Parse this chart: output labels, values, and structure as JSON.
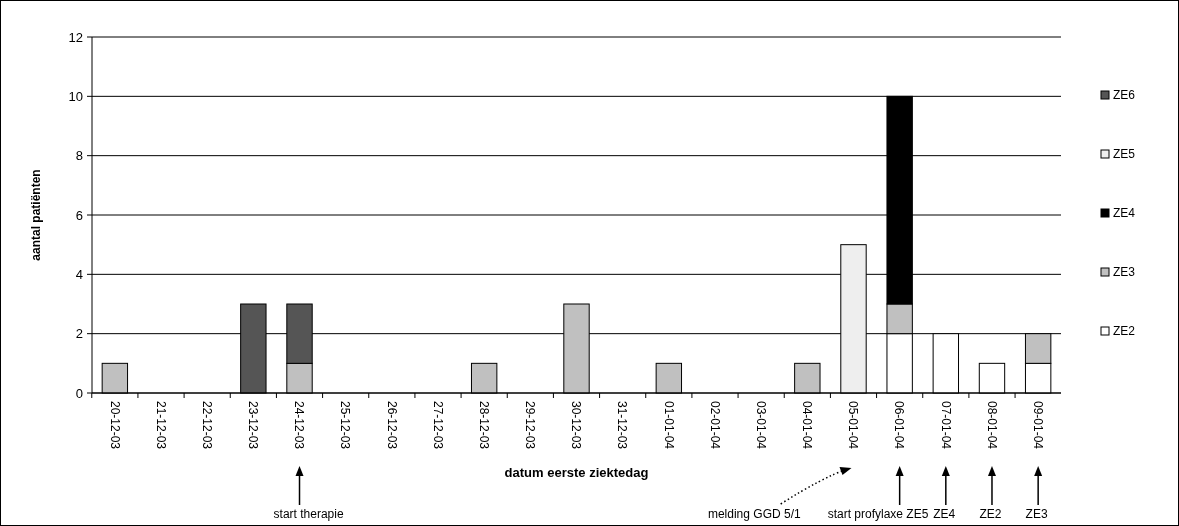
{
  "chart_data": {
    "type": "bar",
    "stacked": true,
    "xlabel": "datum eerste ziektedag",
    "ylabel": "aantal patiënten",
    "categories": [
      "20-12-03",
      "21-12-03",
      "22-12-03",
      "23-12-03",
      "24-12-03",
      "25-12-03",
      "26-12-03",
      "27-12-03",
      "28-12-03",
      "29-12-03",
      "30-12-03",
      "31-12-03",
      "01-01-04",
      "02-01-04",
      "03-01-04",
      "04-01-04",
      "05-01-04",
      "06-01-04",
      "07-01-04",
      "08-01-04",
      "09-01-04"
    ],
    "series": [
      {
        "name": "ZE2",
        "color": "#ffffff",
        "values": [
          0,
          0,
          0,
          0,
          0,
          0,
          0,
          0,
          0,
          0,
          0,
          0,
          0,
          0,
          0,
          0,
          0,
          2,
          2,
          1,
          1
        ]
      },
      {
        "name": "ZE3",
        "color": "#c0c0c0",
        "values": [
          1,
          0,
          0,
          0,
          1,
          0,
          0,
          0,
          1,
          0,
          3,
          0,
          1,
          0,
          0,
          1,
          0,
          1,
          0,
          0,
          1
        ]
      },
      {
        "name": "ZE4",
        "color": "#000000",
        "values": [
          0,
          0,
          0,
          0,
          0,
          0,
          0,
          0,
          0,
          0,
          0,
          0,
          0,
          0,
          0,
          0,
          0,
          7,
          0,
          0,
          0
        ]
      },
      {
        "name": "ZE5",
        "color": "#eeeeee",
        "values": [
          0,
          0,
          0,
          0,
          0,
          0,
          0,
          0,
          0,
          0,
          0,
          0,
          0,
          0,
          0,
          0,
          5,
          0,
          0,
          0,
          0
        ]
      },
      {
        "name": "ZE6",
        "color": "#555555",
        "values": [
          0,
          0,
          0,
          3,
          2,
          0,
          0,
          0,
          0,
          0,
          0,
          0,
          0,
          0,
          0,
          0,
          0,
          0,
          0,
          0,
          0
        ]
      }
    ],
    "ylim": [
      0,
      12
    ],
    "yticks": [
      0,
      2,
      4,
      6,
      8,
      10,
      12
    ],
    "grid": "y",
    "legend": "right",
    "annotations": [
      "start therapie",
      "melding GGD 5/1",
      "start profylaxe ZE5",
      "ZE4",
      "ZE2",
      "ZE3"
    ]
  }
}
